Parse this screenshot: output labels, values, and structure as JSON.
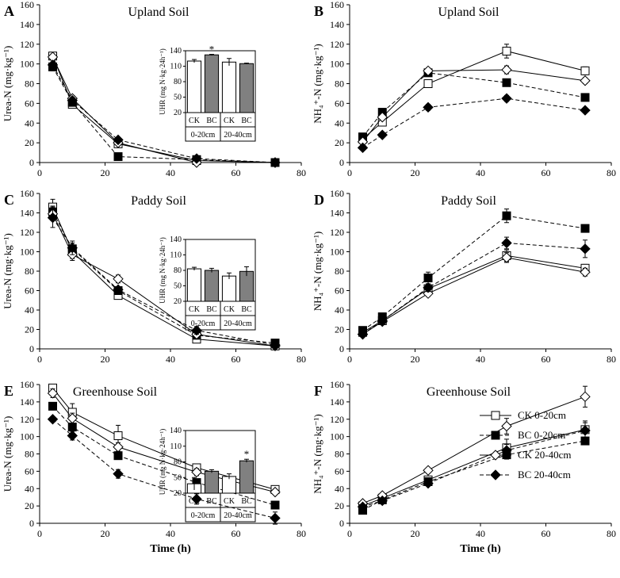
{
  "chart_data": [
    {
      "type": "line",
      "panel_letter": "A",
      "title": "Upland Soil",
      "ylabel": "Urea-N (mg·kg⁻¹)",
      "xlabel": "",
      "xlim": [
        0,
        80
      ],
      "ylim": [
        0,
        160
      ],
      "xticks": [
        0,
        20,
        40,
        60,
        80
      ],
      "yticks": [
        0,
        20,
        40,
        60,
        80,
        100,
        120,
        140,
        160
      ],
      "x": [
        4,
        10,
        24,
        48,
        72
      ],
      "series": [
        {
          "name": "CK 0-20cm",
          "values": [
            108,
            59,
            19,
            2,
            0
          ],
          "errors": [
            3,
            3,
            2,
            1,
            0.5
          ]
        },
        {
          "name": "BC 0-20cm",
          "values": [
            97,
            61,
            6,
            3,
            0
          ],
          "errors": [
            4,
            3,
            1,
            1,
            0.5
          ]
        },
        {
          "name": "CK 20-40cm",
          "values": [
            107,
            65,
            20,
            0,
            0
          ],
          "errors": [
            3,
            3,
            2,
            1,
            0.5
          ]
        },
        {
          "name": "BC 20-40cm",
          "values": [
            99,
            63,
            23,
            4,
            0
          ],
          "errors": [
            3,
            3,
            2,
            1,
            0.5
          ]
        }
      ],
      "inset": {
        "ylabel": "UHR (mg N·kg·24h⁻¹)",
        "yticks": [
          20,
          50,
          80,
          110,
          140
        ],
        "ylim": [
          20,
          140
        ],
        "bars": [
          {
            "label": "CK",
            "value": 120,
            "error": 3
          },
          {
            "label": "BC",
            "value": 132,
            "error": 1
          },
          {
            "label": "CK",
            "value": 118,
            "error": 7
          },
          {
            "label": "BC",
            "value": 115,
            "error": 1
          }
        ],
        "groups": [
          "0-20cm",
          "20-40cm"
        ],
        "annotations": [
          {
            "bar": 1,
            "text": "*"
          }
        ]
      }
    },
    {
      "type": "line",
      "panel_letter": "B",
      "title": "Upland Soil",
      "ylabel": "NH₄⁺-N (mg·kg⁻¹)",
      "xlabel": "",
      "xlim": [
        0,
        80
      ],
      "ylim": [
        0,
        160
      ],
      "xticks": [
        0,
        20,
        40,
        60,
        80
      ],
      "yticks": [
        0,
        20,
        40,
        60,
        80,
        100,
        120,
        140,
        160
      ],
      "x": [
        4,
        10,
        24,
        48,
        72
      ],
      "series": [
        {
          "name": "CK 0-20cm",
          "values": [
            24,
            41,
            80,
            113,
            93
          ],
          "errors": [
            3,
            3,
            3,
            7,
            4
          ]
        },
        {
          "name": "BC 0-20cm",
          "values": [
            26,
            51,
            91,
            81,
            66
          ],
          "errors": [
            2,
            3,
            3,
            3,
            2
          ]
        },
        {
          "name": "CK 20-40cm",
          "values": [
            21,
            46,
            93,
            94,
            83
          ],
          "errors": [
            2,
            3,
            3,
            4,
            3
          ]
        },
        {
          "name": "BC 20-40cm",
          "values": [
            15,
            28,
            56,
            65,
            53
          ],
          "errors": [
            1,
            2,
            3,
            3,
            2
          ]
        }
      ]
    },
    {
      "type": "line",
      "panel_letter": "C",
      "title": "Paddy Soil",
      "ylabel": "Urea-N (mg·kg⁻¹)",
      "xlabel": "",
      "xlim": [
        0,
        80
      ],
      "ylim": [
        0,
        160
      ],
      "xticks": [
        0,
        20,
        40,
        60,
        80
      ],
      "yticks": [
        0,
        20,
        40,
        60,
        80,
        100,
        120,
        140,
        160
      ],
      "x": [
        4,
        10,
        24,
        48,
        72
      ],
      "series": [
        {
          "name": "CK 0-20cm",
          "values": [
            146,
            100,
            55,
            10,
            3
          ],
          "errors": [
            8,
            7,
            3,
            2,
            1
          ]
        },
        {
          "name": "BC 0-20cm",
          "values": [
            141,
            103,
            60,
            14,
            6
          ],
          "errors": [
            6,
            6,
            3,
            2,
            1
          ]
        },
        {
          "name": "CK 20-40cm",
          "values": [
            139,
            97,
            72,
            15,
            3
          ],
          "errors": [
            7,
            6,
            4,
            2,
            1
          ]
        },
        {
          "name": "BC 20-40cm",
          "values": [
            135,
            104,
            61,
            19,
            4
          ],
          "errors": [
            10,
            7,
            3,
            4,
            1
          ]
        }
      ],
      "inset": {
        "ylabel": "UHR (mg N·kg·24h⁻¹)",
        "yticks": [
          20,
          50,
          80,
          110,
          140
        ],
        "ylim": [
          20,
          140
        ],
        "bars": [
          {
            "label": "CK",
            "value": 83,
            "error": 3
          },
          {
            "label": "BC",
            "value": 80,
            "error": 4
          },
          {
            "label": "CK",
            "value": 69,
            "error": 6
          },
          {
            "label": "BC",
            "value": 78,
            "error": 9
          }
        ],
        "groups": [
          "0-20cm",
          "20-40cm"
        ],
        "annotations": []
      }
    },
    {
      "type": "line",
      "panel_letter": "D",
      "title": "Paddy Soil",
      "ylabel": "NH₄⁺-N (mg·kg⁻¹)",
      "xlabel": "",
      "xlim": [
        0,
        80
      ],
      "ylim": [
        0,
        160
      ],
      "xticks": [
        0,
        20,
        40,
        60,
        80
      ],
      "yticks": [
        0,
        20,
        40,
        60,
        80,
        100,
        120,
        140,
        160
      ],
      "x": [
        4,
        10,
        24,
        48,
        72
      ],
      "series": [
        {
          "name": "CK 0-20cm",
          "values": [
            17,
            29,
            62,
            96,
            83
          ],
          "errors": [
            2,
            2,
            3,
            6,
            4
          ]
        },
        {
          "name": "BC 0-20cm",
          "values": [
            19,
            33,
            73,
            137,
            124
          ],
          "errors": [
            2,
            3,
            6,
            7,
            3
          ]
        },
        {
          "name": "CK 20-40cm",
          "values": [
            15,
            28,
            57,
            94,
            79
          ],
          "errors": [
            2,
            2,
            3,
            5,
            4
          ]
        },
        {
          "name": "BC 20-40cm",
          "values": [
            15,
            29,
            63,
            109,
            103
          ],
          "errors": [
            2,
            2,
            4,
            6,
            9
          ]
        }
      ]
    },
    {
      "type": "line",
      "panel_letter": "E",
      "title": "Greenhouse Soil",
      "ylabel": "Urea-N (mg·kg⁻¹)",
      "xlabel": "Time   (h)",
      "xlim": [
        0,
        80
      ],
      "ylim": [
        0,
        160
      ],
      "xticks": [
        0,
        20,
        40,
        60,
        80
      ],
      "yticks": [
        0,
        20,
        40,
        60,
        80,
        100,
        120,
        140,
        160
      ],
      "x": [
        4,
        10,
        24,
        48,
        72
      ],
      "series": [
        {
          "name": "CK 0-20cm",
          "values": [
            156,
            128,
            101,
            64,
            39
          ],
          "errors": [
            4,
            10,
            12,
            4,
            3
          ]
        },
        {
          "name": "BC 0-20cm",
          "values": [
            135,
            111,
            78,
            47,
            21
          ],
          "errors": [
            4,
            4,
            4,
            3,
            3
          ]
        },
        {
          "name": "CK 20-40cm",
          "values": [
            150,
            121,
            88,
            59,
            36
          ],
          "errors": [
            5,
            6,
            5,
            4,
            3
          ]
        },
        {
          "name": "BC 20-40cm",
          "values": [
            120,
            101,
            57,
            28,
            6
          ],
          "errors": [
            3,
            5,
            5,
            6,
            7
          ]
        }
      ],
      "inset": {
        "ylabel": "UHR (mg N·kg·24h⁻¹)",
        "yticks": [
          20,
          50,
          80,
          110,
          140
        ],
        "ylim": [
          20,
          140
        ],
        "bars": [
          {
            "label": "CK",
            "value": 38,
            "error": 12
          },
          {
            "label": "BC",
            "value": 62,
            "error": 3
          },
          {
            "label": "CK",
            "value": 52,
            "error": 5
          },
          {
            "label": "BC",
            "value": 82,
            "error": 3
          }
        ],
        "groups": [
          "0-20cm",
          "20-40cm"
        ],
        "annotations": [
          {
            "bar": 3,
            "text": "*"
          }
        ]
      }
    },
    {
      "type": "line",
      "panel_letter": "F",
      "title": "Greenhouse Soil",
      "ylabel": "NH₄⁺-N (mg·kg⁻¹)",
      "xlabel": "Time   (h)",
      "xlim": [
        0,
        80
      ],
      "ylim": [
        0,
        160
      ],
      "xticks": [
        0,
        20,
        40,
        60,
        80
      ],
      "yticks": [
        0,
        20,
        40,
        60,
        80,
        100,
        120,
        140,
        160
      ],
      "x": [
        4,
        10,
        24,
        48,
        72
      ],
      "series": [
        {
          "name": "CK 0-20cm",
          "values": [
            20,
            29,
            50,
            87,
            108
          ],
          "errors": [
            2,
            2,
            3,
            10,
            10
          ]
        },
        {
          "name": "BC 0-20cm",
          "values": [
            15,
            27,
            48,
            79,
            95
          ],
          "errors": [
            2,
            2,
            3,
            5,
            3
          ]
        },
        {
          "name": "CK 20-40cm",
          "values": [
            23,
            32,
            61,
            112,
            146
          ],
          "errors": [
            2,
            2,
            3,
            9,
            12
          ]
        },
        {
          "name": "BC 20-40cm",
          "values": [
            19,
            26,
            46,
            84,
            107
          ],
          "errors": [
            2,
            2,
            3,
            7,
            9
          ]
        }
      ],
      "legend": {
        "placement": "bottom-right",
        "entries": [
          "CK 0-20cm",
          "BC 0-20cm",
          "CK 20-40cm",
          "BC 20-40cm"
        ]
      }
    }
  ]
}
